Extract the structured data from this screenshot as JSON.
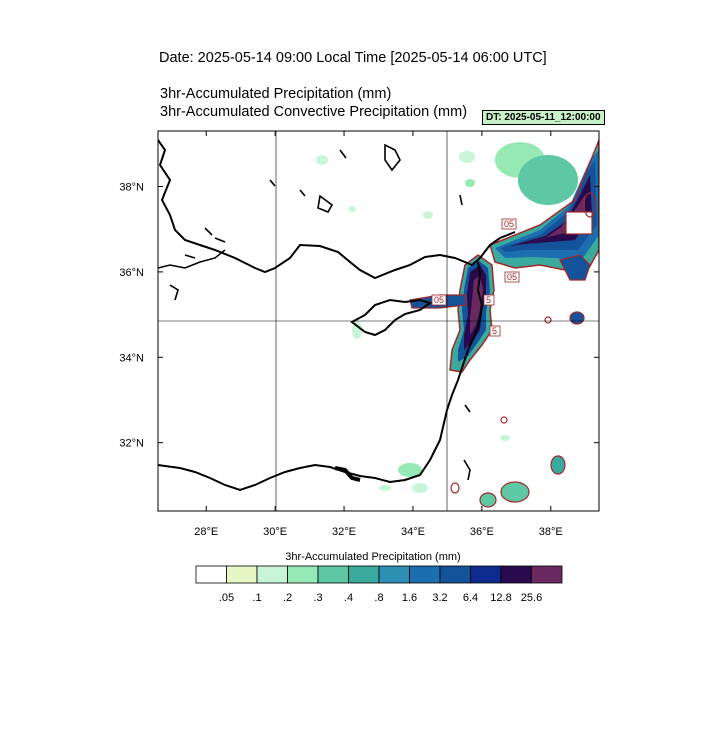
{
  "header": {
    "date_title": "Date: 2025-05-14  09:00 Local Time [2025-05-14  06:00 UTC]",
    "field_title_1": "3hr-Accumulated Precipitation   (mm)",
    "field_title_2": "3hr-Accumulated Convective Precipitation   (mm)",
    "dt_label": "DT: 2025-05-11_12:00:00"
  },
  "map": {
    "lat_labels": [
      "38°N",
      "36°N",
      "34°N",
      "32°N"
    ],
    "lon_labels": [
      "28°E",
      "30°E",
      "32°E",
      "34°E",
      "36°E",
      "38°E"
    ],
    "lat_values": [
      38,
      36,
      34,
      32
    ],
    "lon_values": [
      28,
      30,
      32,
      34,
      36,
      38
    ],
    "grid_lines": {
      "lon": [
        30,
        35
      ],
      "lat": [
        35
      ]
    },
    "extent": {
      "lon_min": 26.6,
      "lon_max": 39.4,
      "lat_min": 30.4,
      "lat_max": 39.3
    },
    "convective_contour_color": "#a0282a",
    "coastline_color": "#000000"
  },
  "colorbar": {
    "title": "3hr-Accumulated Precipitation  (mm)",
    "levels": [
      ".05",
      ".1",
      ".2",
      ".3",
      ".4",
      ".8",
      "1.6",
      "3.2",
      "6.4",
      "12.8",
      "25.6"
    ],
    "colors": [
      "#ffffff",
      "#e6f7c5",
      "#c8f5d7",
      "#96e8b4",
      "#5ec8a5",
      "#3aaa9e",
      "#2e8fb5",
      "#1b6fb0",
      "#14539a",
      "#0d2b8f",
      "#2a0a4f",
      "#6b2a5f"
    ]
  },
  "contour_labels": [
    "05",
    "05",
    "05",
    "5",
    "5"
  ]
}
